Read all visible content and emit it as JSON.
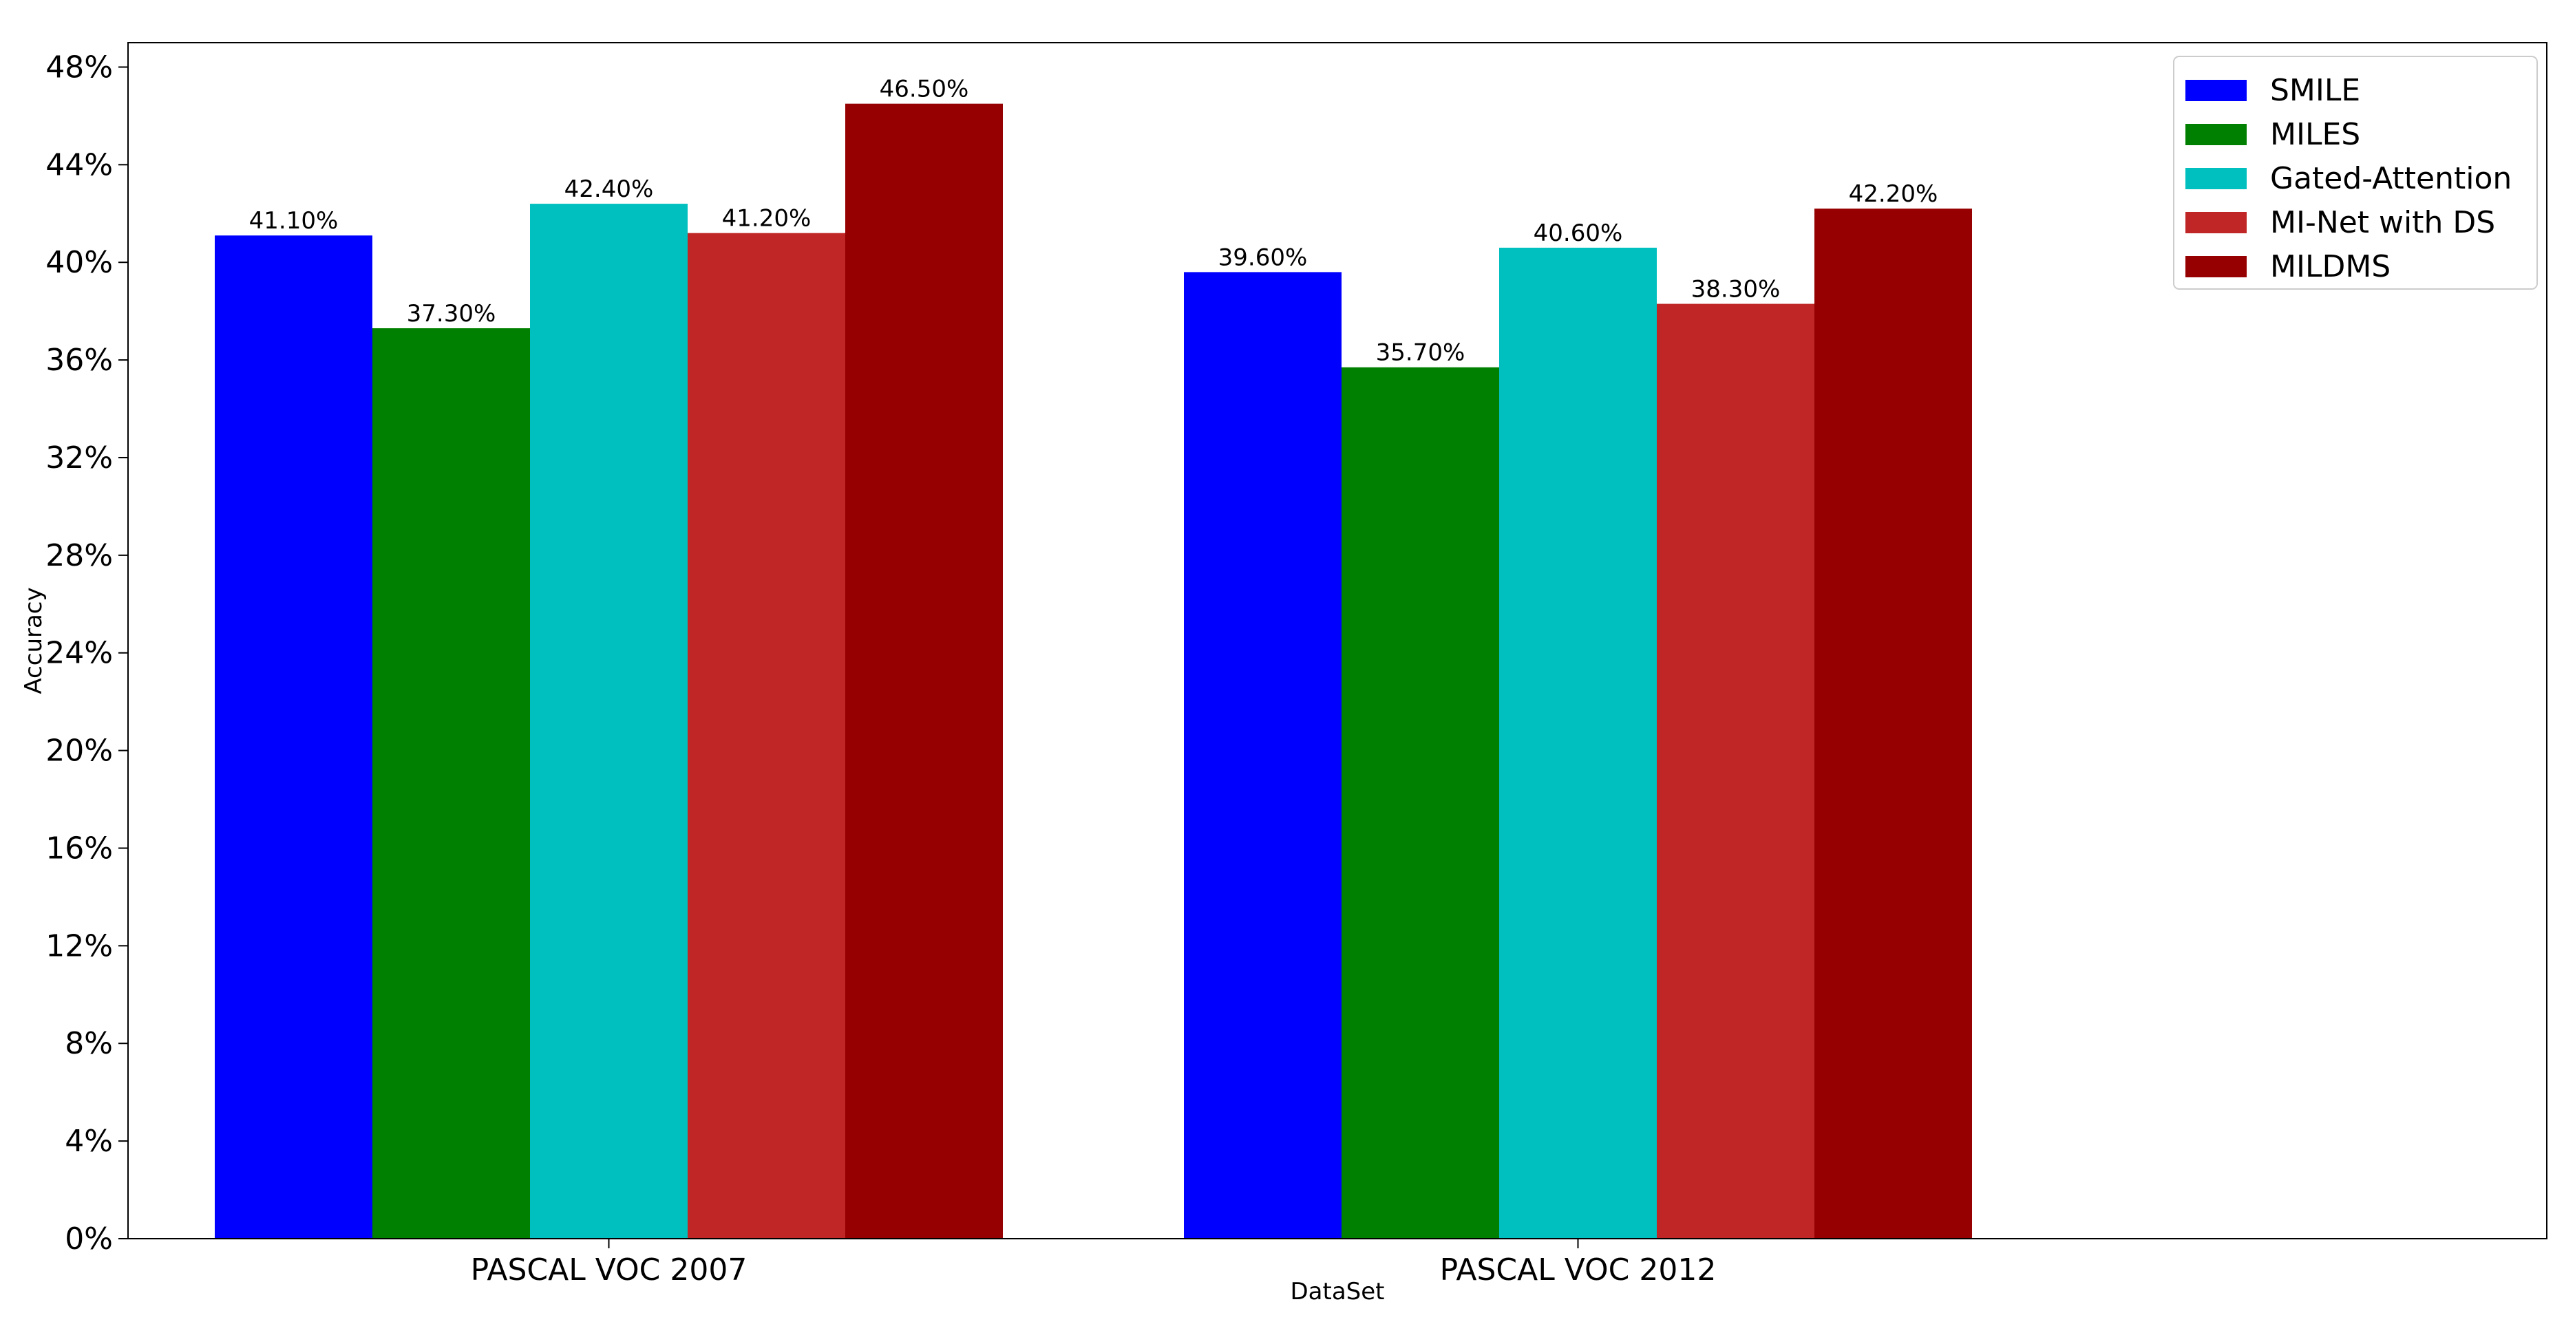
{
  "chart_data": {
    "type": "bar",
    "title": "",
    "xlabel": "DataSet",
    "ylabel": "Accuracy",
    "categories": [
      "PASCAL VOC 2007",
      "PASCAL VOC 2012"
    ],
    "series": [
      {
        "name": "SMILE",
        "values": [
          41.1,
          39.6
        ],
        "color": "#0000ff",
        "labels": [
          "41.10%",
          "39.60%"
        ]
      },
      {
        "name": "MILES",
        "values": [
          37.3,
          35.7
        ],
        "color": "#008000",
        "labels": [
          "37.30%",
          "35.70%"
        ]
      },
      {
        "name": "Gated-Attention",
        "values": [
          42.4,
          40.6
        ],
        "color": "#00bfbf",
        "labels": [
          "42.40%",
          "40.60%"
        ]
      },
      {
        "name": "MI-Net with DS",
        "values": [
          41.2,
          38.3
        ],
        "color": "#c02626",
        "labels": [
          "41.20%",
          "38.30%"
        ]
      },
      {
        "name": "MILDMS",
        "values": [
          46.5,
          42.2
        ],
        "color": "#960000",
        "labels": [
          "46.50%",
          "42.20%"
        ]
      }
    ],
    "y_ticks": [
      "0%",
      "4%",
      "8%",
      "12%",
      "16%",
      "20%",
      "24%",
      "28%",
      "32%",
      "36%",
      "40%",
      "44%",
      "48%"
    ],
    "y_tick_values": [
      0,
      4,
      8,
      12,
      16,
      20,
      24,
      28,
      32,
      36,
      40,
      44,
      48
    ],
    "ylim": [
      0,
      49
    ],
    "grid": false,
    "legend_position": "top-right"
  }
}
